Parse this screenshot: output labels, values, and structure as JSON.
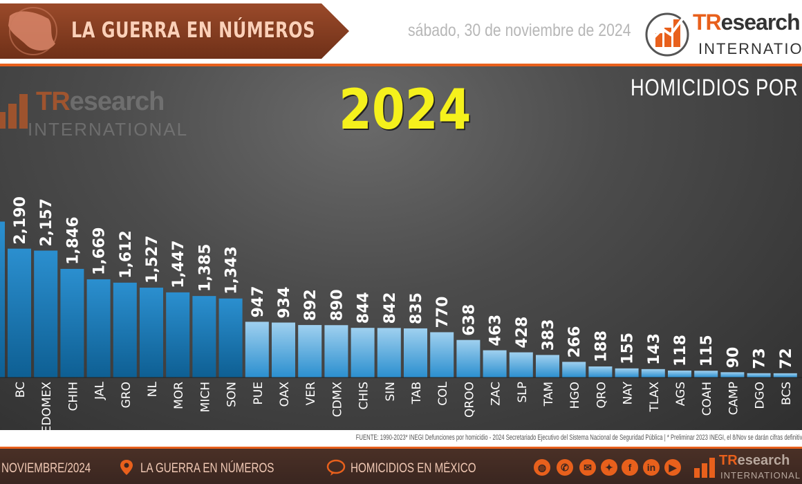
{
  "header": {
    "banner_title": "LA GUERRA EN NÚMEROS",
    "date": "sábado, 30 de noviembre de 2024",
    "logo_name_a": "TR",
    "logo_name_b": "esearch",
    "logo_sub": "INTERNATIONAL"
  },
  "main": {
    "year": "2024",
    "chart_title": "HOMICIDIOS POR AÑ",
    "watermark_a": "TR",
    "watermark_b": "esearch",
    "watermark_sub": "INTERNATIONAL"
  },
  "chart_data": {
    "type": "bar",
    "title": "HOMICIDIOS POR AÑ",
    "categories": [
      "BC",
      "EDOMEX",
      "CHIH",
      "JAL",
      "GRO",
      "NL",
      "MOR",
      "MICH",
      "SON",
      "PUE",
      "OAX",
      "VER",
      "CDMX",
      "CHIS",
      "SIN",
      "TAB",
      "COL",
      "QROO",
      "ZAC",
      "SLP",
      "TAM",
      "HGO",
      "QRO",
      "NAY",
      "TLAX",
      "AGS",
      "COAH",
      "CAMP",
      "DGO",
      "BCS"
    ],
    "values": [
      2190,
      2157,
      1846,
      1669,
      1612,
      1527,
      1447,
      1385,
      1343,
      947,
      934,
      892,
      890,
      844,
      842,
      835,
      770,
      638,
      463,
      428,
      383,
      266,
      188,
      155,
      143,
      118,
      115,
      90,
      73,
      72
    ],
    "value_labels": [
      "2,190",
      "2,157",
      "1,846",
      "1,669",
      "1,612",
      "1,527",
      "1,447",
      "1,385",
      "1,343",
      "947",
      "934",
      "892",
      "890",
      "844",
      "842",
      "835",
      "770",
      "638",
      "463",
      "428",
      "383",
      "266",
      "188",
      "155",
      "143",
      "118",
      "115",
      "90",
      "73",
      "72"
    ],
    "partial_first_bar_value": 2650,
    "ylim": [
      0,
      2900
    ],
    "colors": {
      "bar_top": "#2b8fcf",
      "bar_bottom": "#0e5f93",
      "bar_light_top": "#9fd0ef"
    }
  },
  "source": "FUENTE: 1990-2023* INEGI Defunciones por homicidio - 2024 Secretariado Ejecutivo del Sistema Nacional de Seguridad Pública | * Preliminar 2023 INEGI, el 8/Nov se darán cifras definitiv",
  "footer": {
    "date": "NOVIEMBRE/2024",
    "section1": "LA GUERRA EN NÚMEROS",
    "section2": "HOMICIDIOS EN MÉXICO",
    "logo_name_a": "TR",
    "logo_name_b": "esearch",
    "logo_sub": "INTERNATIONAL",
    "social_icons": [
      "globe-icon",
      "whatsapp-icon",
      "email-icon",
      "twitter-icon",
      "facebook-icon",
      "linkedin-icon",
      "youtube-icon"
    ]
  }
}
